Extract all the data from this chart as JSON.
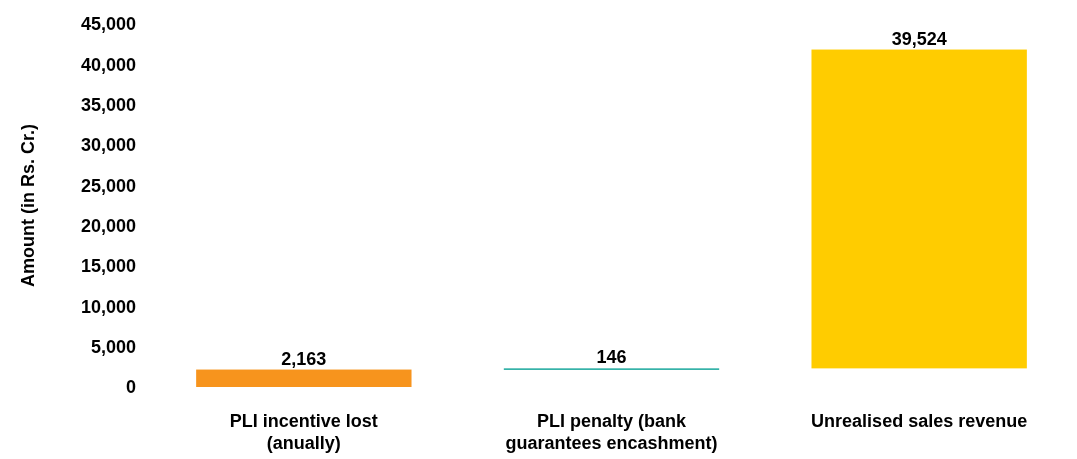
{
  "chart_data": {
    "type": "bar",
    "ylabel": "Amount (in Rs. Cr.)",
    "categories": [
      "PLI incentive lost (anually)",
      "PLI penalty (bank guarantees encashment)",
      "Unrealised sales revenue"
    ],
    "values": [
      2163,
      146,
      39524
    ],
    "base": [
      0,
      2163,
      2309
    ],
    "colors": [
      "#f7941d",
      "#1aa89c",
      "#ffcc00"
    ],
    "ylim": [
      0,
      45000
    ],
    "yticks": [
      {
        "value": 0,
        "label": "0"
      },
      {
        "value": 5000,
        "label": "5,000"
      },
      {
        "value": 10000,
        "label": "10,000"
      },
      {
        "value": 15000,
        "label": "15,000"
      },
      {
        "value": 20000,
        "label": "20,000"
      },
      {
        "value": 25000,
        "label": "25,000"
      },
      {
        "value": 30000,
        "label": "30,000"
      },
      {
        "value": 35000,
        "label": "35,000"
      },
      {
        "value": 40000,
        "label": "40,000"
      },
      {
        "value": 45000,
        "label": "45,000"
      }
    ],
    "value_labels": [
      "2,163",
      "146",
      "39,524"
    ],
    "grid": false
  }
}
